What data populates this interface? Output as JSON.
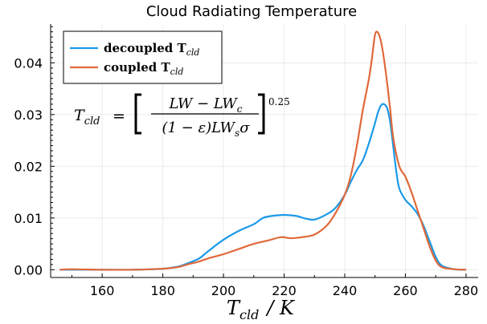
{
  "chart_data": {
    "type": "line",
    "title": "Cloud Radiating Temperature",
    "xlabel_main": "T",
    "xlabel_sub": "cld",
    "xlabel_suffix": "/ K",
    "ylabel": "",
    "xlim": [
      143,
      284
    ],
    "ylim": [
      -0.0015,
      0.0475
    ],
    "xticks": [
      160,
      180,
      200,
      220,
      240,
      260,
      280
    ],
    "yticks": [
      0.0,
      0.01,
      0.02,
      0.03,
      0.04
    ],
    "ytick_labels": [
      "0.00",
      "0.01",
      "0.02",
      "0.03",
      "0.04"
    ],
    "grid": true,
    "legend_position": "top-left",
    "series": [
      {
        "name_main": "decoupled T",
        "name_sub": "cld",
        "color": "#1a9ae8",
        "x": [
          146,
          150,
          160,
          170,
          180,
          185,
          188,
          192,
          195,
          200,
          205,
          210,
          213,
          216,
          220,
          224,
          227,
          230,
          234,
          237,
          240,
          242,
          244,
          246,
          248,
          250,
          251,
          252,
          253,
          254,
          255,
          256,
          257,
          258,
          260,
          262,
          264,
          266,
          268,
          270,
          272,
          276,
          280
        ],
        "y": [
          0.0,
          0.0,
          0.0,
          0.0,
          0.0002,
          0.0006,
          0.0012,
          0.0022,
          0.0036,
          0.0058,
          0.0075,
          0.0088,
          0.01,
          0.0104,
          0.0106,
          0.0104,
          0.0099,
          0.0097,
          0.0107,
          0.012,
          0.0145,
          0.017,
          0.0193,
          0.0212,
          0.0245,
          0.0284,
          0.0305,
          0.0318,
          0.032,
          0.0312,
          0.0285,
          0.0238,
          0.019,
          0.0157,
          0.0135,
          0.0123,
          0.0108,
          0.0085,
          0.0055,
          0.0025,
          0.0008,
          0.0001,
          0.0
        ]
      },
      {
        "name_main": "coupled T",
        "name_sub": "cld",
        "color": "#e0693a",
        "x": [
          146,
          150,
          160,
          170,
          180,
          185,
          188,
          192,
          195,
          200,
          205,
          210,
          215,
          219,
          222,
          226,
          230,
          234,
          237,
          240,
          242,
          244,
          246,
          248,
          249,
          250,
          251,
          252,
          253,
          254,
          255,
          256,
          258,
          260,
          262,
          264,
          266,
          268,
          270,
          272,
          276,
          280
        ],
        "y": [
          0.0,
          0.0001,
          0.0,
          0.0,
          0.0002,
          0.0005,
          0.001,
          0.0016,
          0.0022,
          0.003,
          0.004,
          0.005,
          0.0057,
          0.0063,
          0.0061,
          0.0063,
          0.0068,
          0.0085,
          0.011,
          0.0145,
          0.0182,
          0.024,
          0.031,
          0.037,
          0.041,
          0.0455,
          0.0458,
          0.044,
          0.0405,
          0.036,
          0.031,
          0.0255,
          0.02,
          0.018,
          0.015,
          0.0115,
          0.008,
          0.0045,
          0.0018,
          0.0005,
          0.0001,
          0.0
        ]
      }
    ],
    "annotation": {
      "lhs_main": "T",
      "lhs_sub": "cld",
      "equals": "=",
      "numerator": "LW − LW",
      "numerator_sub": "c",
      "denominator_pre": "(1 − ε)LW",
      "denominator_sub": "s",
      "denominator_post": "σ",
      "exponent": "0.25"
    }
  }
}
